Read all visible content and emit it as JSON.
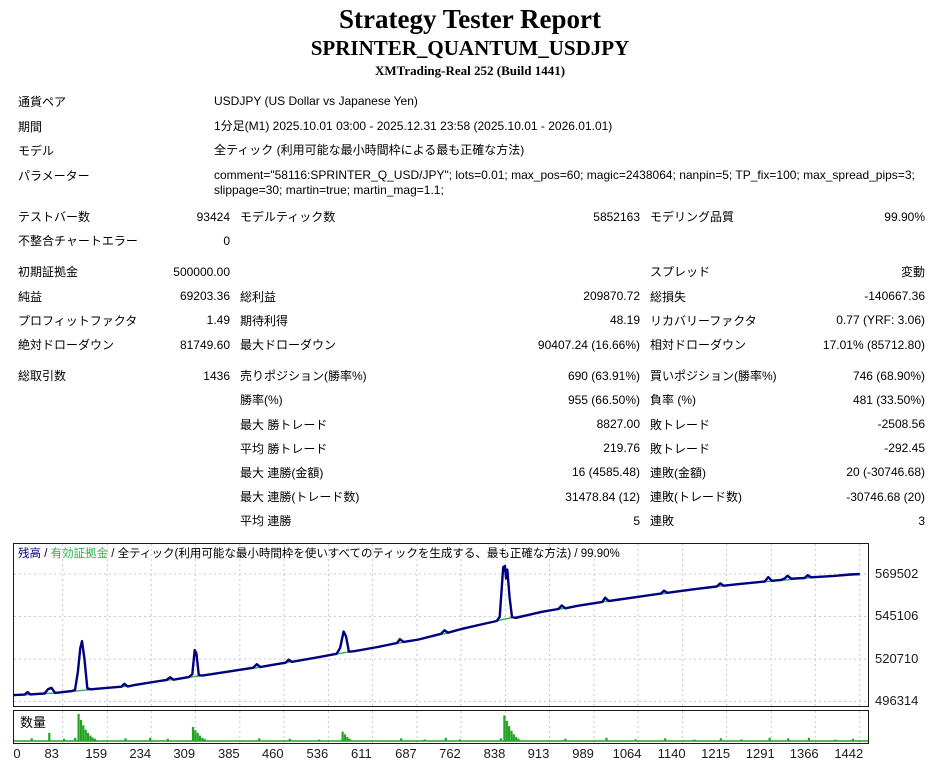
{
  "header": {
    "title": "Strategy Tester Report",
    "symbol": "SPRINTER_QUANTUM_USDJPY",
    "server": "XMTrading-Real 252 (Build 1441)"
  },
  "info": {
    "rows": [
      [
        "通貨ペア",
        "USDJPY (US Dollar vs Japanese Yen)"
      ],
      [
        "期間",
        "1分足(M1) 2025.10.01 03:00 - 2025.12.31 23:58 (2025.10.01 - 2026.01.01)"
      ],
      [
        "モデル",
        "全ティック (利用可能な最小時間枠による最も正確な方法)"
      ],
      [
        "パラメーター",
        "comment=\"58116:SPRINTER_Q_USD/JPY\"; lots=0.01; max_pos=60; magic=2438064; nanpin=5; TP_fix=100; max_spread_pips=3; slippage=30; martin=true; martin_mag=1.1;"
      ]
    ]
  },
  "stats": {
    "sections": [
      {
        "rows": [
          [
            "テストバー数",
            "93424",
            "モデルティック数",
            "5852163",
            "モデリング品質",
            "99.90%"
          ],
          [
            "不整合チャートエラー",
            "0",
            "",
            "",
            "",
            ""
          ]
        ]
      },
      {
        "rows": [
          [
            "初期証拠金",
            "500000.00",
            "",
            "",
            "スプレッド",
            "変動"
          ],
          [
            "純益",
            "69203.36",
            "総利益",
            "209870.72",
            "総損失",
            "-140667.36"
          ],
          [
            "プロフィットファクタ",
            "1.49",
            "期待利得",
            "48.19",
            "リカバリーファクタ",
            "0.77 (YRF: 3.06)"
          ],
          [
            "絶対ドローダウン",
            "81749.60",
            "最大ドローダウン",
            "90407.24 (16.66%)",
            "相対ドローダウン",
            "17.01% (85712.80)"
          ]
        ]
      },
      {
        "rows": [
          [
            "総取引数",
            "1436",
            "売りポジション(勝率%)",
            "690 (63.91%)",
            "買いポジション(勝率%)",
            "746 (68.90%)"
          ],
          [
            "",
            "",
            "勝率(%)",
            "955 (66.50%)",
            "負率 (%)",
            "481 (33.50%)"
          ],
          [
            "",
            "",
            "最大 勝トレード",
            "8827.00",
            "敗トレード",
            "-2508.56"
          ],
          [
            "",
            "",
            "平均 勝トレード",
            "219.76",
            "敗トレード",
            "-292.45"
          ],
          [
            "",
            "",
            "最大 連勝(金額)",
            "16 (4585.48)",
            "連敗(金額)",
            "20 (-30746.68)"
          ],
          [
            "",
            "",
            "最大 連勝(トレード数)",
            "31478.84 (12)",
            "連敗(トレード数)",
            "-30746.68 (20)"
          ],
          [
            "",
            "",
            "平均 連勝",
            "5",
            "連敗",
            "3"
          ]
        ]
      }
    ]
  },
  "chart_data": {
    "type": "line",
    "legend_parts": [
      {
        "text": "残高",
        "color": "#000080"
      },
      {
        "text": " / ",
        "color": "#000000"
      },
      {
        "text": "有効証拠金",
        "color": "#2faf4e"
      },
      {
        "text": " / 全ティック(利用可能な最小時間枠を使いすべてのティックを生成する、最も正確な方法) / 99.90%",
        "color": "#000000"
      }
    ],
    "x_max": 1456,
    "x_ticks": [
      0,
      83,
      159,
      234,
      309,
      385,
      460,
      536,
      611,
      687,
      762,
      838,
      913,
      989,
      1064,
      1140,
      1215,
      1291,
      1366,
      1442
    ],
    "y_ticks": [
      569502,
      545106,
      520710,
      496314
    ],
    "grid_color": "#c9c9c9",
    "series": [
      {
        "name": "残高",
        "color": "#000080",
        "width": 2.4,
        "points": [
          [
            0,
            500000
          ],
          [
            18,
            500250
          ],
          [
            23,
            501700
          ],
          [
            28,
            500400
          ],
          [
            40,
            500650
          ],
          [
            52,
            500900
          ],
          [
            58,
            503400
          ],
          [
            64,
            504200
          ],
          [
            70,
            501250
          ],
          [
            80,
            501600
          ],
          [
            98,
            502300
          ],
          [
            104,
            502900
          ],
          [
            109,
            513500
          ],
          [
            113,
            527000
          ],
          [
            116,
            531000
          ],
          [
            120,
            521000
          ],
          [
            125,
            503900
          ],
          [
            131,
            503300
          ],
          [
            160,
            504200
          ],
          [
            183,
            504800
          ],
          [
            188,
            506400
          ],
          [
            194,
            504950
          ],
          [
            205,
            505700
          ],
          [
            248,
            508100
          ],
          [
            260,
            508650
          ],
          [
            266,
            510200
          ],
          [
            272,
            508850
          ],
          [
            298,
            510300
          ],
          [
            304,
            511900
          ],
          [
            308,
            525800
          ],
          [
            311,
            523900
          ],
          [
            315,
            511400
          ],
          [
            321,
            511200
          ],
          [
            360,
            513200
          ],
          [
            408,
            515700
          ],
          [
            414,
            517700
          ],
          [
            420,
            516050
          ],
          [
            440,
            517300
          ],
          [
            463,
            518600
          ],
          [
            468,
            520300
          ],
          [
            474,
            519100
          ],
          [
            518,
            521700
          ],
          [
            550,
            523700
          ],
          [
            556,
            527000
          ],
          [
            562,
            536500
          ],
          [
            566,
            533800
          ],
          [
            571,
            524900
          ],
          [
            580,
            525200
          ],
          [
            620,
            527600
          ],
          [
            653,
            529900
          ],
          [
            658,
            532100
          ],
          [
            664,
            530500
          ],
          [
            690,
            531900
          ],
          [
            728,
            535200
          ],
          [
            734,
            537200
          ],
          [
            740,
            535800
          ],
          [
            762,
            537900
          ],
          [
            800,
            540800
          ],
          [
            823,
            542500
          ],
          [
            828,
            544900
          ],
          [
            834,
            573400
          ],
          [
            837,
            574100
          ],
          [
            839,
            567000
          ],
          [
            841,
            572000
          ],
          [
            845,
            556000
          ],
          [
            849,
            544800
          ],
          [
            855,
            544300
          ],
          [
            900,
            547800
          ],
          [
            928,
            549400
          ],
          [
            934,
            551400
          ],
          [
            940,
            549800
          ],
          [
            962,
            551300
          ],
          [
            1003,
            553500
          ],
          [
            1008,
            555900
          ],
          [
            1014,
            554000
          ],
          [
            1060,
            556200
          ],
          [
            1103,
            558300
          ],
          [
            1108,
            559900
          ],
          [
            1114,
            558700
          ],
          [
            1160,
            560800
          ],
          [
            1198,
            562300
          ],
          [
            1204,
            564100
          ],
          [
            1210,
            562800
          ],
          [
            1240,
            563900
          ],
          [
            1280,
            565200
          ],
          [
            1286,
            567700
          ],
          [
            1292,
            565600
          ],
          [
            1308,
            566100
          ],
          [
            1314,
            566900
          ],
          [
            1319,
            568500
          ],
          [
            1325,
            566800
          ],
          [
            1348,
            567200
          ],
          [
            1353,
            568800
          ],
          [
            1359,
            567600
          ],
          [
            1398,
            568400
          ],
          [
            1425,
            569200
          ],
          [
            1442,
            569500
          ]
        ]
      },
      {
        "name": "有効証拠金",
        "color": "#2faf4e",
        "width": 1.4,
        "points": [
          [
            0,
            499800
          ],
          [
            40,
            500500
          ],
          [
            80,
            501400
          ],
          [
            116,
            502700
          ],
          [
            160,
            504000
          ],
          [
            205,
            505500
          ],
          [
            248,
            507900
          ],
          [
            308,
            510600
          ],
          [
            360,
            513000
          ],
          [
            420,
            516000
          ],
          [
            468,
            518900
          ],
          [
            518,
            521600
          ],
          [
            562,
            524300
          ],
          [
            620,
            527500
          ],
          [
            664,
            530300
          ],
          [
            690,
            531800
          ],
          [
            740,
            535700
          ],
          [
            800,
            540700
          ],
          [
            837,
            543600
          ],
          [
            900,
            547700
          ],
          [
            962,
            551200
          ],
          [
            1008,
            553700
          ],
          [
            1060,
            556100
          ],
          [
            1114,
            558500
          ],
          [
            1160,
            560700
          ],
          [
            1210,
            562700
          ],
          [
            1260,
            564500
          ],
          [
            1314,
            566000
          ],
          [
            1359,
            567400
          ],
          [
            1400,
            568300
          ],
          [
            1442,
            569203
          ]
        ]
      }
    ],
    "volume": {
      "label": "数量",
      "color": "#22a322",
      "bars": [
        [
          30,
          0.1
        ],
        [
          60,
          0.3
        ],
        [
          85,
          0.08
        ],
        [
          104,
          0.12
        ],
        [
          110,
          1.0
        ],
        [
          114,
          0.78
        ],
        [
          118,
          0.58
        ],
        [
          122,
          0.42
        ],
        [
          126,
          0.3
        ],
        [
          130,
          0.2
        ],
        [
          134,
          0.13
        ],
        [
          138,
          0.08
        ],
        [
          190,
          0.1
        ],
        [
          232,
          0.12
        ],
        [
          262,
          0.08
        ],
        [
          305,
          0.52
        ],
        [
          309,
          0.4
        ],
        [
          313,
          0.3
        ],
        [
          317,
          0.2
        ],
        [
          321,
          0.12
        ],
        [
          325,
          0.07
        ],
        [
          418,
          0.1
        ],
        [
          470,
          0.08
        ],
        [
          520,
          0.05
        ],
        [
          560,
          0.35
        ],
        [
          564,
          0.25
        ],
        [
          568,
          0.15
        ],
        [
          572,
          0.08
        ],
        [
          660,
          0.1
        ],
        [
          700,
          0.06
        ],
        [
          736,
          0.12
        ],
        [
          760,
          0.06
        ],
        [
          830,
          0.1
        ],
        [
          836,
          0.95
        ],
        [
          840,
          0.75
        ],
        [
          844,
          0.55
        ],
        [
          848,
          0.38
        ],
        [
          852,
          0.25
        ],
        [
          856,
          0.15
        ],
        [
          860,
          0.08
        ],
        [
          940,
          0.08
        ],
        [
          1010,
          0.12
        ],
        [
          1060,
          0.06
        ],
        [
          1110,
          0.1
        ],
        [
          1160,
          0.05
        ],
        [
          1205,
          0.1
        ],
        [
          1240,
          0.06
        ],
        [
          1288,
          0.12
        ],
        [
          1320,
          0.1
        ],
        [
          1355,
          0.12
        ],
        [
          1400,
          0.05
        ],
        [
          1430,
          0.08
        ]
      ]
    }
  }
}
